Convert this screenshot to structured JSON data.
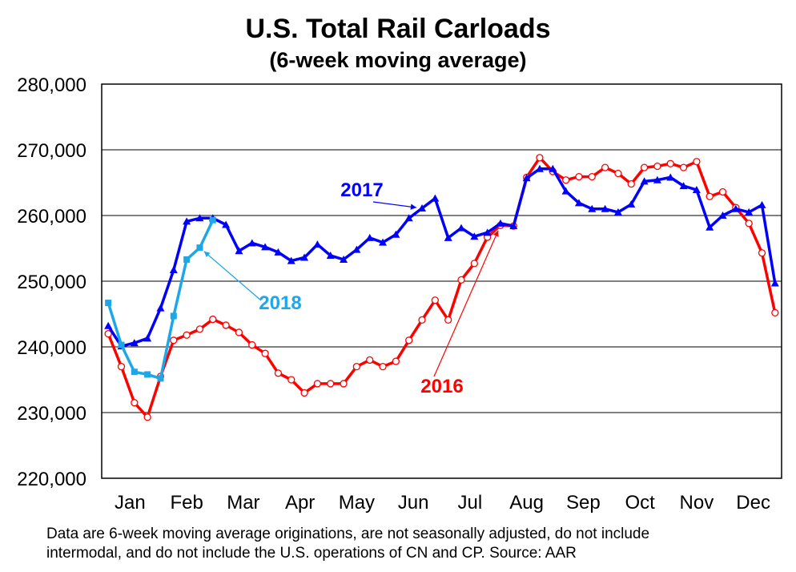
{
  "chart_data": {
    "type": "line",
    "title": "U.S. Total Rail Carloads",
    "subtitle": "(6-week moving average)",
    "xlabel": "",
    "ylabel": "",
    "ylim": [
      220000,
      280000
    ],
    "yticks": [
      220000,
      230000,
      240000,
      250000,
      260000,
      270000,
      280000
    ],
    "ytick_labels": [
      "220,000",
      "230,000",
      "240,000",
      "250,000",
      "260,000",
      "270,000",
      "280,000"
    ],
    "months": [
      "Jan",
      "Feb",
      "Mar",
      "Apr",
      "May",
      "Jun",
      "Jul",
      "Aug",
      "Sep",
      "Oct",
      "Nov",
      "Dec"
    ],
    "x_unit": "week of year",
    "xlim": [
      0.5,
      52.5
    ],
    "grid": true,
    "legend": "inline annotations",
    "series": [
      {
        "name": "2016",
        "color": "#ff0000",
        "marker": "open-circle",
        "label_anchor_week": 31,
        "x": [
          1,
          2,
          3,
          4,
          5,
          6,
          7,
          8,
          9,
          10,
          11,
          12,
          13,
          14,
          15,
          16,
          17,
          18,
          19,
          20,
          21,
          22,
          23,
          24,
          25,
          26,
          27,
          28,
          29,
          30,
          31,
          32,
          33,
          34,
          35,
          36,
          37,
          38,
          39,
          40,
          41,
          42,
          43,
          44,
          45,
          46,
          47,
          48,
          49,
          50,
          51,
          52
        ],
        "values": [
          242000,
          237000,
          231500,
          229300,
          235500,
          241000,
          241800,
          242700,
          244200,
          243300,
          242200,
          240300,
          239000,
          236000,
          235000,
          233000,
          234400,
          234400,
          234400,
          237000,
          238000,
          237000,
          237800,
          241000,
          244100,
          247100,
          244100,
          250200,
          252700,
          256700,
          258500,
          258400,
          265800,
          268800,
          266700,
          265400,
          265900,
          265900,
          267300,
          266400,
          264800,
          267300,
          267500,
          267900,
          267300,
          268200,
          262900,
          263600,
          261200,
          258800,
          254300,
          245200
        ]
      },
      {
        "name": "2017",
        "color": "#0000ff",
        "marker": "triangle",
        "label_anchor_week": 25,
        "x": [
          1,
          2,
          3,
          4,
          5,
          6,
          7,
          8,
          9,
          10,
          11,
          12,
          13,
          14,
          15,
          16,
          17,
          18,
          19,
          20,
          21,
          22,
          23,
          24,
          25,
          26,
          27,
          28,
          29,
          30,
          31,
          32,
          33,
          34,
          35,
          36,
          37,
          38,
          39,
          40,
          41,
          42,
          43,
          44,
          45,
          46,
          47,
          48,
          49,
          50,
          51,
          52
        ],
        "values": [
          243200,
          240100,
          240600,
          241300,
          245900,
          251700,
          259100,
          259600,
          259600,
          258600,
          254600,
          255800,
          255200,
          254400,
          253100,
          253600,
          255600,
          253900,
          253300,
          254800,
          256600,
          255900,
          257100,
          259600,
          261100,
          262600,
          256600,
          258100,
          256800,
          257400,
          258800,
          258400,
          265700,
          267100,
          267100,
          263700,
          261900,
          261000,
          261000,
          260500,
          261700,
          265200,
          265400,
          265800,
          264500,
          263900,
          258200,
          260000,
          261000,
          260500,
          261600,
          249700
        ]
      },
      {
        "name": "2018",
        "color": "#1ea7e8",
        "marker": "square",
        "label_anchor_week": 8,
        "x": [
          1,
          2,
          3,
          4,
          5,
          6,
          7,
          8,
          9
        ],
        "values": [
          246700,
          240300,
          236200,
          235800,
          235200,
          244700,
          253300,
          255100,
          259300
        ]
      }
    ],
    "annotations": [
      {
        "text": "2017",
        "series": "2017"
      },
      {
        "text": "2018",
        "series": "2018"
      },
      {
        "text": "2016",
        "series": "2016"
      }
    ]
  },
  "footnote": {
    "line1": "Data are 6-week moving average originations, are not seasonally adjusted, do not include",
    "line2": "intermodal, and do not include the U.S. operations of CN and CP.  Source: AAR"
  }
}
